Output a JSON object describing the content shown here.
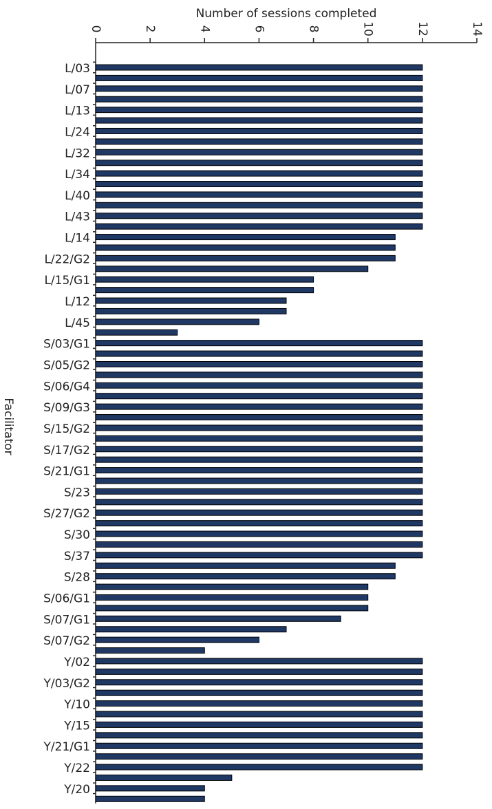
{
  "chart_data": {
    "type": "hbar",
    "xlabel": "Number of sessions completed",
    "ylabel": "Facilitator",
    "categories": [
      "L/03",
      null,
      "L/07",
      null,
      "L/13",
      null,
      "L/24",
      null,
      "L/32",
      null,
      "L/34",
      null,
      "L/40",
      null,
      "L/43",
      null,
      "L/14",
      null,
      "L/22/G2",
      null,
      "L/15/G1",
      null,
      "L/12",
      null,
      "L/45",
      null,
      "S/03/G1",
      null,
      "S/05/G2",
      null,
      "S/06/G4",
      null,
      "S/09/G3",
      null,
      "S/15/G2",
      null,
      "S/17/G2",
      null,
      "S/21/G1",
      null,
      "S/23",
      null,
      "S/27/G2",
      null,
      "S/30",
      null,
      "S/37",
      null,
      "S/28",
      null,
      "S/06/G1",
      null,
      "S/07/G1",
      null,
      "S/07/G2",
      null,
      "Y/02",
      null,
      "Y/03/G2",
      null,
      "Y/10",
      null,
      "Y/15",
      null,
      "Y/21/G1",
      null,
      "Y/22",
      null,
      "Y/20",
      null
    ],
    "values": [
      12,
      12,
      12,
      12,
      12,
      12,
      12,
      12,
      12,
      12,
      12,
      12,
      12,
      12,
      12,
      12,
      11,
      11,
      11,
      10,
      8,
      8,
      7,
      7,
      6,
      3,
      12,
      12,
      12,
      12,
      12,
      12,
      12,
      12,
      12,
      12,
      12,
      12,
      12,
      12,
      12,
      12,
      12,
      12,
      12,
      12,
      12,
      11,
      11,
      10,
      10,
      10,
      9,
      7,
      6,
      4,
      12,
      12,
      12,
      12,
      12,
      12,
      12,
      12,
      12,
      12,
      12,
      5,
      4,
      4
    ],
    "color": "#1f3864",
    "xlim": [
      0,
      14
    ],
    "xticks": [
      0,
      2,
      4,
      6,
      8,
      10,
      12,
      14
    ]
  }
}
